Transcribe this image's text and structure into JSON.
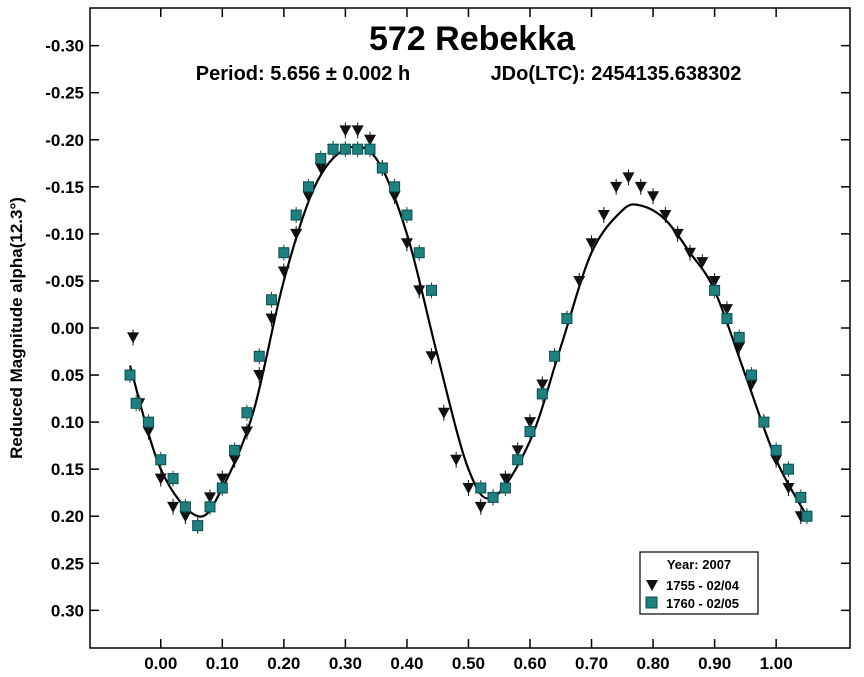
{
  "chart_data": {
    "type": "scatter",
    "title": "572 Rebekka",
    "subtitle_period": "Period: 5.656 ± 0.002 h",
    "subtitle_epoch": "JDo(LTC): 2454135.638302",
    "xlabel": "",
    "ylabel": "Reduced Magnitude alpha(12.3°)",
    "xlim": [
      -0.115,
      1.12
    ],
    "ylim": [
      0.34,
      -0.34
    ],
    "y_inverted": true,
    "x_ticks": [
      0.0,
      0.1,
      0.2,
      0.3,
      0.4,
      0.5,
      0.6,
      0.7,
      0.8,
      0.9,
      1.0
    ],
    "x_tick_labels": [
      "0.00",
      "0.10",
      "0.20",
      "0.30",
      "0.40",
      "0.50",
      "0.60",
      "0.70",
      "0.80",
      "0.90",
      "1.00"
    ],
    "y_ticks": [
      -0.3,
      -0.25,
      -0.2,
      -0.15,
      -0.1,
      -0.05,
      0.0,
      0.05,
      0.1,
      0.15,
      0.2,
      0.25,
      0.3
    ],
    "y_tick_labels": [
      "-0.30",
      "-0.25",
      "-0.20",
      "-0.15",
      "-0.10",
      "-0.05",
      "0.00",
      "0.05",
      "0.10",
      "0.15",
      "0.20",
      "0.25",
      "0.30"
    ],
    "grid": false,
    "legend": {
      "title": "Year: 2007",
      "placement": "bottom-right",
      "entries": [
        "1755 - 02/04",
        "1760 - 02/05"
      ]
    },
    "colors": {
      "series_1755": "#111111",
      "series_1760": "#1f8080",
      "fit": "#000000"
    },
    "fit_curve": {
      "name": "",
      "x": [
        -0.05,
        0.0,
        0.06,
        0.1,
        0.15,
        0.2,
        0.25,
        0.3,
        0.35,
        0.4,
        0.45,
        0.5,
        0.54,
        0.6,
        0.65,
        0.7,
        0.75,
        0.78,
        0.82,
        0.86,
        0.9,
        0.95,
        1.0,
        1.05
      ],
      "y": [
        0.04,
        0.15,
        0.2,
        0.17,
        0.09,
        -0.05,
        -0.15,
        -0.19,
        -0.18,
        -0.1,
        0.03,
        0.15,
        0.18,
        0.12,
        0.02,
        -0.08,
        -0.125,
        -0.13,
        -0.115,
        -0.08,
        -0.04,
        0.05,
        0.14,
        0.2
      ]
    },
    "series": [
      {
        "name": "1755 - 02/04",
        "marker": "triangle-down",
        "x": [
          -0.045,
          -0.035,
          -0.02,
          0.0,
          0.02,
          0.04,
          0.06,
          0.08,
          0.1,
          0.12,
          0.14,
          0.16,
          0.18,
          0.2,
          0.22,
          0.24,
          0.26,
          0.28,
          0.3,
          0.32,
          0.34,
          0.36,
          0.38,
          0.4,
          0.42,
          0.44,
          0.46,
          0.48,
          0.5,
          0.52,
          0.54,
          0.56,
          0.58,
          0.6,
          0.62,
          0.64,
          0.66,
          0.68,
          0.7,
          0.72,
          0.74,
          0.76,
          0.78,
          0.8,
          0.82,
          0.84,
          0.86,
          0.88,
          0.9,
          0.92,
          0.94,
          0.96,
          0.98,
          1.0,
          1.02,
          1.04
        ],
        "y": [
          0.01,
          0.08,
          0.11,
          0.16,
          0.19,
          0.2,
          0.21,
          0.18,
          0.16,
          0.14,
          0.11,
          0.05,
          -0.01,
          -0.06,
          -0.1,
          -0.14,
          -0.17,
          -0.19,
          -0.21,
          -0.21,
          -0.2,
          -0.17,
          -0.14,
          -0.09,
          -0.04,
          0.03,
          0.09,
          0.14,
          0.17,
          0.19,
          0.18,
          0.16,
          0.13,
          0.1,
          0.06,
          0.03,
          -0.01,
          -0.05,
          -0.09,
          -0.12,
          -0.15,
          -0.16,
          -0.15,
          -0.14,
          -0.12,
          -0.1,
          -0.08,
          -0.07,
          -0.05,
          -0.02,
          0.02,
          0.06,
          0.1,
          0.14,
          0.17,
          0.2
        ]
      },
      {
        "name": "1760 - 02/05",
        "marker": "square",
        "x": [
          -0.05,
          -0.04,
          -0.02,
          0.0,
          0.02,
          0.04,
          0.06,
          0.08,
          0.1,
          0.12,
          0.14,
          0.16,
          0.18,
          0.2,
          0.22,
          0.24,
          0.26,
          0.28,
          0.3,
          0.32,
          0.34,
          0.36,
          0.38,
          0.4,
          0.42,
          0.44,
          0.52,
          0.54,
          0.56,
          0.58,
          0.6,
          0.62,
          0.64,
          0.66,
          0.9,
          0.92,
          0.94,
          0.96,
          0.98,
          1.0,
          1.02,
          1.04,
          1.05
        ],
        "y": [
          0.05,
          0.08,
          0.1,
          0.14,
          0.16,
          0.19,
          0.21,
          0.19,
          0.17,
          0.13,
          0.09,
          0.03,
          -0.03,
          -0.08,
          -0.12,
          -0.15,
          -0.18,
          -0.19,
          -0.19,
          -0.19,
          -0.19,
          -0.17,
          -0.15,
          -0.12,
          -0.08,
          -0.04,
          0.17,
          0.18,
          0.17,
          0.14,
          0.11,
          0.07,
          0.03,
          -0.01,
          -0.04,
          -0.01,
          0.01,
          0.05,
          0.1,
          0.13,
          0.15,
          0.18,
          0.2
        ]
      }
    ]
  }
}
